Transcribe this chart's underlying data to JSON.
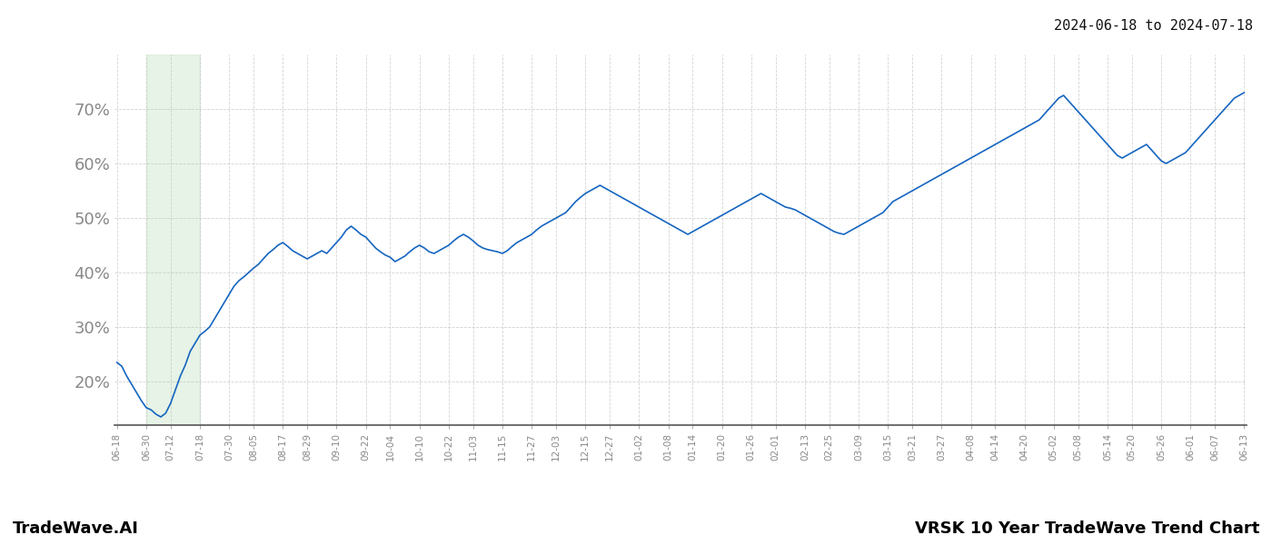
{
  "title_top_right": "2024-06-18 to 2024-07-18",
  "footer_left": "TradeWave.AI",
  "footer_right": "VRSK 10 Year TradeWave Trend Chart",
  "background_color": "#ffffff",
  "line_color": "#1565c0",
  "line_width": 1.2,
  "highlight_color": "#c8e6c9",
  "highlight_alpha": 0.45,
  "grid_color": "#c0c0c0",
  "grid_alpha": 0.7,
  "ymin": 12,
  "ymax": 80,
  "yticks": [
    20,
    30,
    40,
    50,
    60,
    70
  ],
  "tick_label_color": "#888888",
  "x_labels": [
    "06-18",
    "06-30",
    "07-12",
    "07-18",
    "07-30",
    "08-05",
    "08-17",
    "08-29",
    "09-10",
    "09-22",
    "10-04",
    "10-10",
    "10-22",
    "11-03",
    "11-15",
    "11-27",
    "12-03",
    "12-15",
    "12-27",
    "01-02",
    "01-08",
    "01-14",
    "01-20",
    "01-26",
    "02-01",
    "02-13",
    "02-25",
    "03-09",
    "03-15",
    "03-21",
    "03-27",
    "04-08",
    "04-14",
    "04-20",
    "05-02",
    "05-08",
    "05-14",
    "05-20",
    "05-26",
    "06-01",
    "06-07",
    "06-13"
  ],
  "highlight_x_start_label": "06-30",
  "highlight_x_end_label": "07-18",
  "y_values": [
    23.5,
    22.8,
    21.0,
    19.5,
    18.0,
    16.5,
    15.2,
    14.8,
    14.0,
    13.5,
    14.2,
    16.0,
    18.5,
    21.0,
    23.0,
    25.5,
    27.0,
    28.5,
    29.2,
    30.0,
    31.5,
    33.0,
    34.5,
    36.0,
    37.5,
    38.5,
    39.2,
    40.0,
    40.8,
    41.5,
    42.5,
    43.5,
    44.2,
    45.0,
    45.5,
    44.8,
    44.0,
    43.5,
    43.0,
    42.5,
    43.0,
    43.5,
    44.0,
    43.5,
    44.5,
    45.5,
    46.5,
    47.8,
    48.5,
    47.8,
    47.0,
    46.5,
    45.5,
    44.5,
    43.8,
    43.2,
    42.8,
    42.0,
    42.5,
    43.0,
    43.8,
    44.5,
    45.0,
    44.5,
    43.8,
    43.5,
    44.0,
    44.5,
    45.0,
    45.8,
    46.5,
    47.0,
    46.5,
    45.8,
    45.0,
    44.5,
    44.2,
    44.0,
    43.8,
    43.5,
    44.0,
    44.8,
    45.5,
    46.0,
    46.5,
    47.0,
    47.8,
    48.5,
    49.0,
    49.5,
    50.0,
    50.5,
    51.0,
    52.0,
    53.0,
    53.8,
    54.5,
    55.0,
    55.5,
    56.0,
    55.5,
    55.0,
    54.5,
    54.0,
    53.5,
    53.0,
    52.5,
    52.0,
    51.5,
    51.0,
    50.5,
    50.0,
    49.5,
    49.0,
    48.5,
    48.0,
    47.5,
    47.0,
    47.5,
    48.0,
    48.5,
    49.0,
    49.5,
    50.0,
    50.5,
    51.0,
    51.5,
    52.0,
    52.5,
    53.0,
    53.5,
    54.0,
    54.5,
    54.0,
    53.5,
    53.0,
    52.5,
    52.0,
    51.8,
    51.5,
    51.0,
    50.5,
    50.0,
    49.5,
    49.0,
    48.5,
    48.0,
    47.5,
    47.2,
    47.0,
    47.5,
    48.0,
    48.5,
    49.0,
    49.5,
    50.0,
    50.5,
    51.0,
    52.0,
    53.0,
    53.5,
    54.0,
    54.5,
    55.0,
    55.5,
    56.0,
    56.5,
    57.0,
    57.5,
    58.0,
    58.5,
    59.0,
    59.5,
    60.0,
    60.5,
    61.0,
    61.5,
    62.0,
    62.5,
    63.0,
    63.5,
    64.0,
    64.5,
    65.0,
    65.5,
    66.0,
    66.5,
    67.0,
    67.5,
    68.0,
    69.0,
    70.0,
    71.0,
    72.0,
    72.5,
    71.5,
    70.5,
    69.5,
    68.5,
    67.5,
    66.5,
    65.5,
    64.5,
    63.5,
    62.5,
    61.5,
    61.0,
    61.5,
    62.0,
    62.5,
    63.0,
    63.5,
    62.5,
    61.5,
    60.5,
    60.0,
    60.5,
    61.0,
    61.5,
    62.0,
    63.0,
    64.0,
    65.0,
    66.0,
    67.0,
    68.0,
    69.0,
    70.0,
    71.0,
    72.0,
    72.5,
    73.0
  ]
}
